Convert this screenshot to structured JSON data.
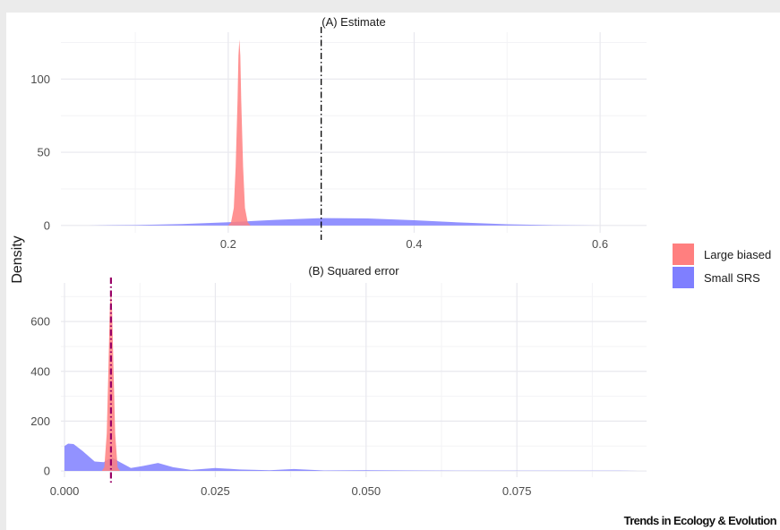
{
  "ylabel": "Density",
  "credit": "Trends in Ecology & Evolution",
  "legend": [
    {
      "label": "Large biased",
      "color": "#ff7f7f"
    },
    {
      "label": "Small SRS",
      "color": "#7f7fff"
    }
  ],
  "chart_data": [
    {
      "type": "area",
      "title": "(A) Estimate",
      "xlim": [
        0.02,
        0.65
      ],
      "ylim": [
        -5,
        132
      ],
      "xticks": [
        0.2,
        0.4,
        0.6
      ],
      "xtick_labels": [
        "0.2",
        "0.4",
        "0.6"
      ],
      "yticks": [
        0,
        50,
        100
      ],
      "ytick_labels": [
        "0",
        "50",
        "100"
      ],
      "reference_line": 0.3,
      "series": [
        {
          "name": "Large biased",
          "color": "#ff7f7f",
          "x": [
            0.2,
            0.203,
            0.206,
            0.208,
            0.21,
            0.211,
            0.212,
            0.213,
            0.214,
            0.216,
            0.218,
            0.221,
            0.224
          ],
          "y": [
            0,
            2,
            12,
            40,
            85,
            116,
            127,
            116,
            85,
            40,
            12,
            2,
            0
          ]
        },
        {
          "name": "Small SRS",
          "color": "#7f7fff",
          "x": [
            0.05,
            0.1,
            0.15,
            0.2,
            0.25,
            0.3,
            0.35,
            0.4,
            0.45,
            0.5,
            0.55,
            0.6
          ],
          "y": [
            0,
            0.3,
            1.0,
            2.2,
            3.8,
            5.0,
            4.8,
            3.6,
            2.0,
            0.8,
            0.2,
            0
          ]
        }
      ]
    },
    {
      "type": "area",
      "title": "(B) Squared error",
      "xlim": [
        -0.0006,
        0.0965
      ],
      "ylim": [
        -25,
        755
      ],
      "xticks": [
        0.0,
        0.025,
        0.05,
        0.075
      ],
      "xtick_labels": [
        "0.000",
        "0.025",
        "0.050",
        "0.075"
      ],
      "yticks": [
        0,
        200,
        400,
        600
      ],
      "ytick_labels": [
        "0",
        "200",
        "400",
        "600"
      ],
      "reference_line": 0.0077,
      "series": [
        {
          "name": "Large biased",
          "color": "#ff7f7f",
          "x": [
            0.0062,
            0.0066,
            0.007,
            0.0073,
            0.0075,
            0.0077,
            0.0079,
            0.0081,
            0.0084,
            0.0088,
            0.0092
          ],
          "y": [
            0,
            15,
            150,
            430,
            640,
            730,
            640,
            430,
            150,
            15,
            0
          ]
        },
        {
          "name": "Small SRS",
          "color": "#7f7fff",
          "x": [
            0.0,
            0.0006,
            0.0015,
            0.003,
            0.005,
            0.0065,
            0.0078,
            0.009,
            0.011,
            0.013,
            0.0155,
            0.018,
            0.021,
            0.025,
            0.029,
            0.034,
            0.038,
            0.043,
            0.05,
            0.057,
            0.065,
            0.075,
            0.085,
            0.092,
            0.095
          ],
          "y": [
            100,
            110,
            108,
            80,
            38,
            35,
            55,
            38,
            12,
            20,
            32,
            15,
            4,
            12,
            6,
            3,
            8,
            2,
            3,
            2,
            1,
            1,
            1,
            1,
            0
          ]
        }
      ]
    }
  ]
}
